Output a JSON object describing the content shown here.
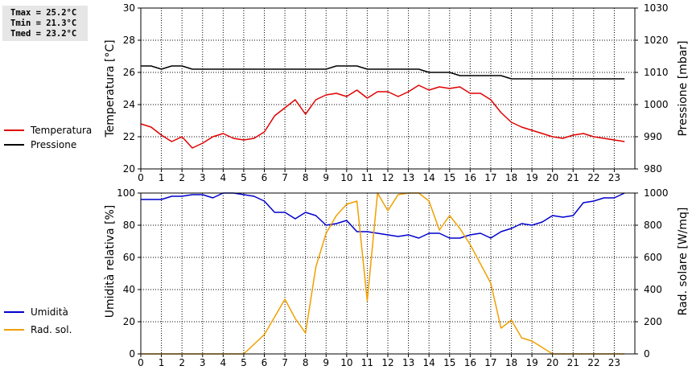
{
  "stats": {
    "tmax": "Tmax = 25.2°C",
    "tmin": "Tmin = 21.3°C",
    "tmed": "Tmed = 23.2°C"
  },
  "colors": {
    "temperature": "#e00000",
    "pressure": "#000000",
    "humidity": "#0000cc",
    "radiation": "#f0a000",
    "grid": "#000000"
  },
  "chart_data": [
    {
      "type": "line",
      "title": "",
      "xlabel": "",
      "x_ticks": [
        "0",
        "1",
        "2",
        "3",
        "4",
        "5",
        "6",
        "7",
        "8",
        "9",
        "10",
        "11",
        "12",
        "13",
        "14",
        "15",
        "16",
        "17",
        "18",
        "19",
        "20",
        "21",
        "22",
        "23"
      ],
      "xlim": [
        0,
        24
      ],
      "left_axis": {
        "label": "Temperatura [°C]",
        "ylim": [
          20,
          30
        ],
        "ticks": [
          "20",
          "22",
          "24",
          "26",
          "28",
          "30"
        ]
      },
      "right_axis": {
        "label": "Pressione [mbar]",
        "ylim": [
          980,
          1030
        ],
        "ticks": [
          "980",
          "990",
          "1000",
          "1010",
          "1020",
          "1030"
        ]
      },
      "legend": [
        {
          "label": "Temperatura",
          "color": "#e00000"
        },
        {
          "label": "Pressione",
          "color": "#000000"
        }
      ],
      "series": [
        {
          "name": "Temperatura",
          "axis": "left",
          "color": "#e00000",
          "x": [
            0,
            0.5,
            1,
            1.5,
            2,
            2.5,
            3,
            3.5,
            4,
            4.5,
            5,
            5.5,
            6,
            6.5,
            7,
            7.5,
            8,
            8.5,
            9,
            9.5,
            10,
            10.5,
            11,
            11.5,
            12,
            12.5,
            13,
            13.5,
            14,
            14.5,
            15,
            15.5,
            16,
            16.5,
            17,
            17.5,
            18,
            18.5,
            19,
            19.5,
            20,
            20.5,
            21,
            21.5,
            22,
            22.5,
            23,
            23.5
          ],
          "values": [
            22.8,
            22.6,
            22.1,
            21.7,
            22.0,
            21.3,
            21.6,
            22.0,
            22.2,
            21.9,
            21.8,
            21.9,
            22.3,
            23.3,
            23.8,
            24.3,
            23.4,
            24.3,
            24.6,
            24.7,
            24.5,
            24.9,
            24.4,
            24.8,
            24.8,
            24.5,
            24.8,
            25.2,
            24.9,
            25.1,
            25.0,
            25.1,
            24.7,
            24.7,
            24.3,
            23.5,
            22.9,
            22.6,
            22.4,
            22.2,
            22.0,
            21.9,
            22.1,
            22.2,
            22.0,
            21.9,
            21.8,
            21.7
          ]
        },
        {
          "name": "Pressione",
          "axis": "right",
          "color": "#000000",
          "x": [
            0,
            0.5,
            1,
            1.5,
            2,
            2.5,
            3,
            3.5,
            4,
            4.5,
            5,
            5.5,
            6,
            6.5,
            7,
            7.5,
            8,
            8.5,
            9,
            9.5,
            10,
            10.5,
            11,
            11.5,
            12,
            12.5,
            13,
            13.5,
            14,
            14.5,
            15,
            15.5,
            16,
            16.5,
            17,
            17.5,
            18,
            18.5,
            19,
            19.5,
            20,
            20.5,
            21,
            21.5,
            22,
            22.5,
            23,
            23.5
          ],
          "values": [
            1012,
            1012,
            1011,
            1012,
            1012,
            1011,
            1011,
            1011,
            1011,
            1011,
            1011,
            1011,
            1011,
            1011,
            1011,
            1011,
            1011,
            1011,
            1011,
            1012,
            1012,
            1012,
            1011,
            1011,
            1011,
            1011,
            1011,
            1011,
            1010,
            1010,
            1010,
            1009,
            1009,
            1009,
            1009,
            1009,
            1008,
            1008,
            1008,
            1008,
            1008,
            1008,
            1008,
            1008,
            1008,
            1008,
            1008,
            1008
          ]
        }
      ]
    },
    {
      "type": "line",
      "title": "",
      "xlabel": "",
      "x_ticks": [
        "0",
        "1",
        "2",
        "3",
        "4",
        "5",
        "6",
        "7",
        "8",
        "9",
        "10",
        "11",
        "12",
        "13",
        "14",
        "15",
        "16",
        "17",
        "18",
        "19",
        "20",
        "21",
        "22",
        "23"
      ],
      "xlim": [
        0,
        24
      ],
      "left_axis": {
        "label": "Umidità relativa [%]",
        "ylim": [
          0,
          100
        ],
        "ticks": [
          "0",
          "20",
          "40",
          "60",
          "80",
          "100"
        ]
      },
      "right_axis": {
        "label": "Rad. solare [W/mq]",
        "ylim": [
          0,
          1000
        ],
        "ticks": [
          "0",
          "200",
          "400",
          "600",
          "800",
          "1000"
        ]
      },
      "legend": [
        {
          "label": "Umidità",
          "color": "#0000cc"
        },
        {
          "label": "Rad. sol.",
          "color": "#f0a000"
        }
      ],
      "series": [
        {
          "name": "Umidità",
          "axis": "left",
          "color": "#0000cc",
          "x": [
            0,
            0.5,
            1,
            1.5,
            2,
            2.5,
            3,
            3.5,
            4,
            4.5,
            5,
            5.5,
            6,
            6.5,
            7,
            7.5,
            8,
            8.5,
            9,
            9.5,
            10,
            10.5,
            11,
            11.5,
            12,
            12.5,
            13,
            13.5,
            14,
            14.5,
            15,
            15.5,
            16,
            16.5,
            17,
            17.5,
            18,
            18.5,
            19,
            19.5,
            20,
            20.5,
            21,
            21.5,
            22,
            22.5,
            23,
            23.5
          ],
          "values": [
            96,
            96,
            96,
            98,
            98,
            99,
            99,
            97,
            100,
            100,
            99,
            98,
            95,
            88,
            88,
            84,
            88,
            86,
            80,
            81,
            83,
            76,
            76,
            75,
            74,
            73,
            74,
            72,
            75,
            75,
            72,
            72,
            74,
            75,
            72,
            76,
            78,
            81,
            80,
            82,
            86,
            85,
            86,
            94,
            95,
            97,
            97,
            100
          ]
        },
        {
          "name": "Rad. sol.",
          "axis": "right",
          "color": "#f0a000",
          "x": [
            0,
            0.5,
            1,
            1.5,
            2,
            2.5,
            3,
            3.5,
            4,
            4.5,
            5,
            5.5,
            6,
            6.5,
            7,
            7.5,
            8,
            8.5,
            9,
            9.5,
            10,
            10.5,
            11,
            11.5,
            12,
            12.5,
            13,
            13.5,
            14,
            14.5,
            15,
            15.5,
            16,
            16.5,
            17,
            17.5,
            18,
            18.5,
            19,
            19.5,
            20,
            20.5,
            21,
            21.5,
            22,
            22.5,
            23,
            23.5
          ],
          "values": [
            0,
            0,
            0,
            0,
            0,
            0,
            0,
            0,
            0,
            0,
            0,
            60,
            120,
            230,
            340,
            220,
            130,
            540,
            750,
            860,
            930,
            950,
            330,
            1000,
            890,
            990,
            1000,
            1000,
            950,
            770,
            860,
            780,
            680,
            560,
            440,
            160,
            210,
            100,
            80,
            40,
            0,
            0,
            0,
            0,
            0,
            0,
            0,
            0
          ]
        }
      ]
    }
  ]
}
